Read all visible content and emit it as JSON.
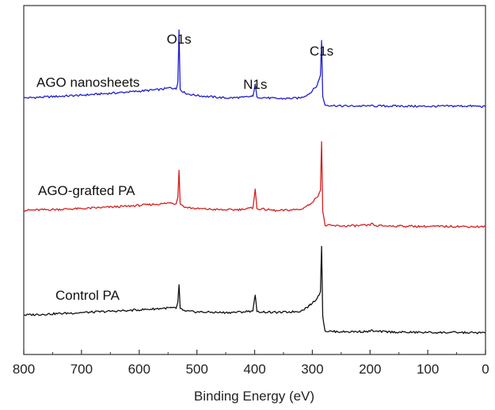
{
  "chart_data": {
    "type": "line",
    "title": "",
    "xlabel": "Binding Energy (eV)",
    "ylabel": "",
    "xlim": [
      800,
      0
    ],
    "x_reversed": true,
    "x_ticks": [
      800,
      700,
      600,
      500,
      400,
      300,
      200,
      100,
      0
    ],
    "y_ticks_shown": false,
    "grid": false,
    "legend": "none",
    "peak_labels": [
      {
        "text": "O1s",
        "x": 531
      },
      {
        "text": "N1s",
        "x": 399
      },
      {
        "text": "C1s",
        "x": 284
      }
    ],
    "series": [
      {
        "name": "AGO nanosheets",
        "color": "#1f1fd0",
        "baseline": 0.74,
        "points": [
          [
            800,
            0.735
          ],
          [
            700,
            0.743
          ],
          [
            620,
            0.752
          ],
          [
            560,
            0.76
          ],
          [
            545,
            0.765
          ],
          [
            536,
            0.76
          ],
          [
            533,
            0.78
          ],
          [
            531,
            0.93
          ],
          [
            529,
            0.76
          ],
          [
            520,
            0.748
          ],
          [
            500,
            0.742
          ],
          [
            450,
            0.735
          ],
          [
            420,
            0.737
          ],
          [
            403,
            0.74
          ],
          [
            399,
            0.775
          ],
          [
            396,
            0.738
          ],
          [
            360,
            0.733
          ],
          [
            320,
            0.735
          ],
          [
            305,
            0.748
          ],
          [
            292,
            0.77
          ],
          [
            286,
            0.8
          ],
          [
            284,
            0.9
          ],
          [
            282,
            0.74
          ],
          [
            278,
            0.715
          ],
          [
            250,
            0.712
          ],
          [
            200,
            0.712
          ],
          [
            150,
            0.712
          ],
          [
            100,
            0.711
          ],
          [
            50,
            0.712
          ],
          [
            20,
            0.712
          ],
          [
            0,
            0.71
          ]
        ]
      },
      {
        "name": "AGO-grafted PA",
        "color": "#d42020",
        "baseline": 0.42,
        "points": [
          [
            800,
            0.413
          ],
          [
            700,
            0.418
          ],
          [
            620,
            0.425
          ],
          [
            560,
            0.432
          ],
          [
            545,
            0.435
          ],
          [
            536,
            0.432
          ],
          [
            533,
            0.45
          ],
          [
            531,
            0.528
          ],
          [
            529,
            0.432
          ],
          [
            520,
            0.422
          ],
          [
            500,
            0.418
          ],
          [
            450,
            0.414
          ],
          [
            420,
            0.416
          ],
          [
            403,
            0.42
          ],
          [
            399,
            0.474
          ],
          [
            396,
            0.418
          ],
          [
            360,
            0.412
          ],
          [
            320,
            0.416
          ],
          [
            305,
            0.43
          ],
          [
            292,
            0.45
          ],
          [
            286,
            0.47
          ],
          [
            284,
            0.61
          ],
          [
            282,
            0.41
          ],
          [
            278,
            0.37
          ],
          [
            250,
            0.368
          ],
          [
            200,
            0.37
          ],
          [
            196,
            0.376
          ],
          [
            192,
            0.369
          ],
          [
            150,
            0.368
          ],
          [
            100,
            0.367
          ],
          [
            50,
            0.367
          ],
          [
            0,
            0.366
          ]
        ]
      },
      {
        "name": "Control PA",
        "color": "#111111",
        "baseline": 0.12,
        "points": [
          [
            800,
            0.113
          ],
          [
            700,
            0.12
          ],
          [
            620,
            0.126
          ],
          [
            560,
            0.132
          ],
          [
            545,
            0.134
          ],
          [
            536,
            0.132
          ],
          [
            533,
            0.15
          ],
          [
            531,
            0.2
          ],
          [
            529,
            0.132
          ],
          [
            520,
            0.124
          ],
          [
            500,
            0.122
          ],
          [
            450,
            0.12
          ],
          [
            420,
            0.122
          ],
          [
            403,
            0.125
          ],
          [
            399,
            0.17
          ],
          [
            396,
            0.123
          ],
          [
            360,
            0.12
          ],
          [
            320,
            0.124
          ],
          [
            305,
            0.14
          ],
          [
            292,
            0.16
          ],
          [
            286,
            0.18
          ],
          [
            284,
            0.31
          ],
          [
            282,
            0.11
          ],
          [
            278,
            0.067
          ],
          [
            250,
            0.065
          ],
          [
            200,
            0.066
          ],
          [
            196,
            0.07
          ],
          [
            192,
            0.066
          ],
          [
            150,
            0.064
          ],
          [
            100,
            0.063
          ],
          [
            50,
            0.063
          ],
          [
            0,
            0.062
          ]
        ]
      }
    ]
  }
}
